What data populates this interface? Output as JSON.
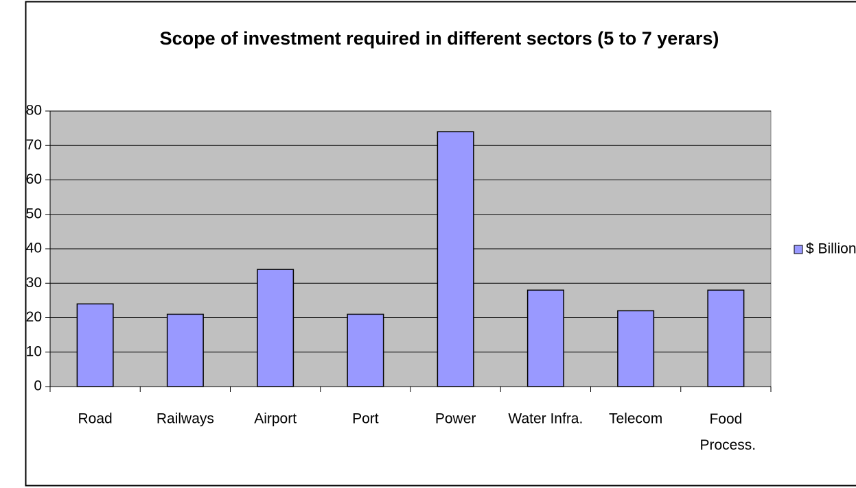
{
  "chart_data": {
    "type": "bar",
    "title": "Scope of investment required in different sectors (5 to 7 yerars)",
    "categories": [
      "Road",
      "Railways",
      "Airport",
      "Port",
      "Power",
      "Water Infra.",
      "Telecom",
      "Food Process."
    ],
    "series": [
      {
        "name": "$ Billion",
        "color": "#9999ff",
        "values": [
          24,
          21,
          34,
          21,
          74,
          28,
          22,
          28
        ]
      }
    ],
    "ylim": [
      0,
      80
    ],
    "yticks": [
      0,
      10,
      20,
      30,
      40,
      50,
      60,
      70,
      80
    ],
    "grid": true,
    "legend": "right"
  }
}
